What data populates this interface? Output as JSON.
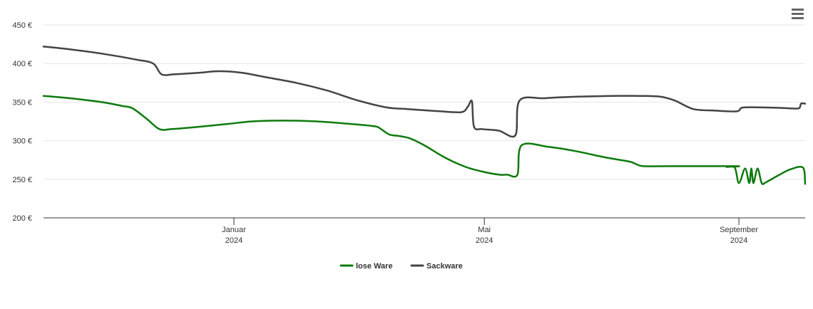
{
  "menu": {
    "icon": "hamburger-menu-icon"
  },
  "chart_data": {
    "type": "line",
    "title": "",
    "xlabel": "",
    "ylabel": "",
    "ylim": [
      200,
      450
    ],
    "y_ticks": [
      {
        "value": 200,
        "label": "200 €"
      },
      {
        "value": 250,
        "label": "250 €"
      },
      {
        "value": 300,
        "label": "300 €"
      },
      {
        "value": 350,
        "label": "350 €"
      },
      {
        "value": 400,
        "label": "400 €"
      },
      {
        "value": 450,
        "label": "450 €"
      }
    ],
    "xlim": [
      "2023-10-01",
      "2024-10-03"
    ],
    "x_ticks": [
      {
        "date": "2024-01-01",
        "month": "Januar",
        "year": "2024"
      },
      {
        "date": "2024-05-01",
        "month": "Mai",
        "year": "2024"
      },
      {
        "date": "2024-09-01",
        "month": "September",
        "year": "2024"
      }
    ],
    "grid": "horizontal",
    "legend_position": "bottom-center",
    "series": [
      {
        "name": "lose Ware",
        "color": "#0e7a0d",
        "points": [
          [
            "2023-10-01",
            358
          ],
          [
            "2023-10-14",
            355
          ],
          [
            "2023-10-29",
            350
          ],
          [
            "2023-11-08",
            345
          ],
          [
            "2023-11-13",
            342
          ],
          [
            "2023-11-20",
            328
          ],
          [
            "2023-11-26",
            315
          ],
          [
            "2023-12-02",
            315
          ],
          [
            "2023-12-15",
            318
          ],
          [
            "2023-12-30",
            322
          ],
          [
            "2024-01-10",
            325
          ],
          [
            "2024-01-25",
            326
          ],
          [
            "2024-02-10",
            325
          ],
          [
            "2024-02-25",
            322
          ],
          [
            "2024-03-08",
            319
          ],
          [
            "2024-03-11",
            317
          ],
          [
            "2024-03-16",
            308
          ],
          [
            "2024-03-21",
            306
          ],
          [
            "2024-03-26",
            303
          ],
          [
            "2024-04-02",
            294
          ],
          [
            "2024-04-12",
            278
          ],
          [
            "2024-04-22",
            266
          ],
          [
            "2024-04-30",
            260
          ],
          [
            "2024-05-08",
            256
          ],
          [
            "2024-05-12",
            256
          ],
          [
            "2024-05-17",
            256
          ],
          [
            "2024-05-19",
            294
          ],
          [
            "2024-06-01",
            292
          ],
          [
            "2024-06-15",
            286
          ],
          [
            "2024-06-29",
            278
          ],
          [
            "2024-07-10",
            273
          ],
          [
            "2024-07-13",
            270
          ],
          [
            "2024-07-17",
            267
          ],
          [
            "2024-07-30",
            267
          ],
          [
            "2024-08-31",
            267
          ],
          [
            "2024-08-26",
            266
          ],
          [
            "2024-08-30",
            265
          ],
          [
            "2024-09-01",
            245
          ],
          [
            "2024-09-04",
            264
          ],
          [
            "2024-09-06",
            245
          ],
          [
            "2024-09-07",
            264
          ],
          [
            "2024-09-08",
            245
          ],
          [
            "2024-09-10",
            264
          ],
          [
            "2024-09-12",
            245
          ],
          [
            "2024-09-14",
            246
          ],
          [
            "2024-09-20",
            255
          ],
          [
            "2024-09-26",
            263
          ],
          [
            "2024-10-02",
            265
          ],
          [
            "2024-10-03",
            244
          ]
        ]
      },
      {
        "name": "Sackware",
        "color": "#444444",
        "points": [
          [
            "2023-10-01",
            422
          ],
          [
            "2023-10-15",
            418
          ],
          [
            "2023-10-31",
            412
          ],
          [
            "2023-11-15",
            405
          ],
          [
            "2023-11-23",
            400
          ],
          [
            "2023-11-27",
            386
          ],
          [
            "2023-12-03",
            386
          ],
          [
            "2023-12-15",
            388
          ],
          [
            "2023-12-25",
            390
          ],
          [
            "2024-01-05",
            388
          ],
          [
            "2024-01-15",
            383
          ],
          [
            "2024-01-31",
            375
          ],
          [
            "2024-02-15",
            365
          ],
          [
            "2024-03-01",
            352
          ],
          [
            "2024-03-15",
            343
          ],
          [
            "2024-03-25",
            341
          ],
          [
            "2024-04-10",
            338
          ],
          [
            "2024-04-20",
            337
          ],
          [
            "2024-04-23",
            344
          ],
          [
            "2024-04-25",
            351
          ],
          [
            "2024-04-26",
            318
          ],
          [
            "2024-04-30",
            315
          ],
          [
            "2024-05-08",
            313
          ],
          [
            "2024-05-16",
            307
          ],
          [
            "2024-05-18",
            352
          ],
          [
            "2024-05-30",
            355
          ],
          [
            "2024-06-15",
            357
          ],
          [
            "2024-07-01",
            358
          ],
          [
            "2024-07-15",
            358
          ],
          [
            "2024-07-25",
            357
          ],
          [
            "2024-08-01",
            352
          ],
          [
            "2024-08-10",
            341
          ],
          [
            "2024-08-20",
            339
          ],
          [
            "2024-08-31",
            338
          ],
          [
            "2024-09-03",
            343
          ],
          [
            "2024-09-15",
            343
          ],
          [
            "2024-09-25",
            342
          ],
          [
            "2024-09-30",
            342
          ],
          [
            "2024-10-01",
            348
          ],
          [
            "2024-10-03",
            348
          ]
        ]
      }
    ]
  }
}
